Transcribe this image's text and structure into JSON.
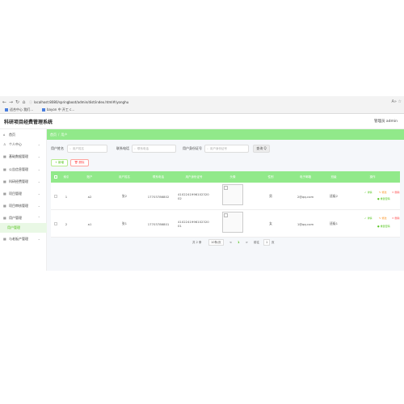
{
  "browser": {
    "url": "localhost:8080/springboot/admin/dist/index.html#/yonghu",
    "bookmarks": [
      "适合中心 我们…",
      "bayon 中 开工 c…"
    ]
  },
  "header": {
    "title": "科研项目经费管理系统",
    "user": "管理员 admin"
  },
  "sidebar": {
    "items": [
      {
        "label": "首页",
        "icon": "home-icon"
      },
      {
        "label": "个人中心",
        "icon": "user-icon"
      },
      {
        "label": "基础数据管理",
        "icon": "grid-icon"
      },
      {
        "label": "公告信息管理",
        "icon": "grid-icon"
      },
      {
        "label": "科研经费管理",
        "icon": "grid-icon"
      },
      {
        "label": "项目管理",
        "icon": "grid-icon"
      },
      {
        "label": "项目审核管理",
        "icon": "grid-icon"
      },
      {
        "label": "用户管理",
        "icon": "grid-icon"
      },
      {
        "label": "与老板产管理",
        "icon": "grid-icon"
      }
    ],
    "active_sub": "用户管理"
  },
  "breadcrumb": {
    "home": "首页",
    "current": "用户"
  },
  "search": {
    "fields": [
      {
        "label": "用户姓名",
        "placeholder": "用户姓名"
      },
      {
        "label": "联系电话",
        "placeholder": "联系电话"
      },
      {
        "label": "用户身份证号",
        "placeholder": "用户身份证号"
      }
    ],
    "query_label": "查询 Q"
  },
  "actions": {
    "add": "+ 新增",
    "delete": "🗑 删除"
  },
  "table": {
    "columns": [
      "",
      "索引",
      "账户",
      "用户姓名",
      "联系电话",
      "用户身份证号",
      "头像",
      "性别",
      "电子邮箱",
      "班级",
      "操作"
    ],
    "rows": [
      {
        "index": "1",
        "account": "a2",
        "name": "张2",
        "phone": "17703786802",
        "idcard": "410224199610232002",
        "gender": "男",
        "email": "2@qq.com",
        "class": "班级2"
      },
      {
        "index": "2",
        "account": "a1",
        "name": "张1",
        "phone": "17703786801",
        "idcard": "410224199610232001",
        "gender": "女",
        "email": "1@qq.com",
        "class": "班级1"
      }
    ],
    "ops": {
      "detail": "详情",
      "edit": "修改",
      "delete": "删除",
      "reset": "重置密码"
    }
  },
  "pagination": {
    "total": "共 2 条",
    "page_size": "10条/页",
    "prev": "<",
    "page": "1",
    "next": ">",
    "goto": "前往",
    "goto_value": "1",
    "page_suffix": "页"
  }
}
